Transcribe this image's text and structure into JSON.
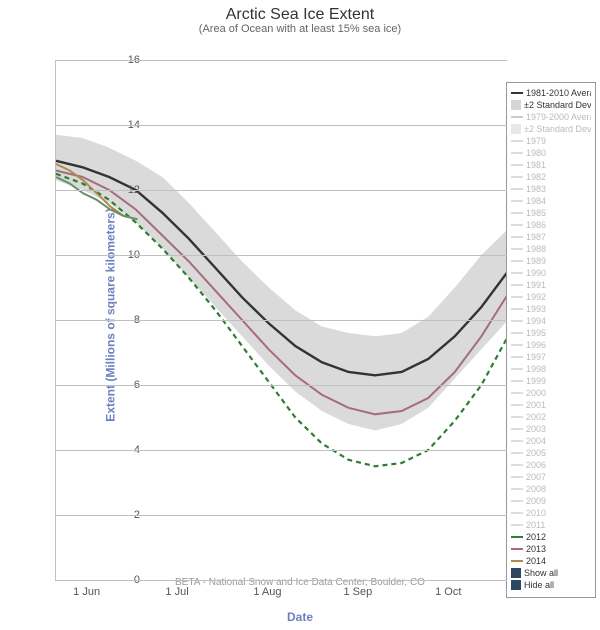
{
  "title": "Arctic Sea Ice Extent",
  "subtitle": "(Area of Ocean with at least 15% sea ice)",
  "y_axis": {
    "label": "Extent (Millions of square kilometers)",
    "min": 0,
    "max": 16,
    "ticks": [
      0,
      2,
      4,
      6,
      8,
      10,
      12,
      14,
      16
    ]
  },
  "x_axis": {
    "label": "Date",
    "ticks": [
      {
        "label": "1 Jun",
        "pos": 0.07
      },
      {
        "label": "1 Jul",
        "pos": 0.27
      },
      {
        "label": "1 Aug",
        "pos": 0.47
      },
      {
        "label": "1 Sep",
        "pos": 0.67
      },
      {
        "label": "1 Oct",
        "pos": 0.87
      }
    ]
  },
  "credits": "BETA - National Snow and Ice Data Center, Boulder, CO",
  "colors": {
    "grid": "#c0c0c0",
    "band": "#d6d6d6",
    "avg_line": "#333333",
    "y2012": "#2e7d32",
    "y2013": "#a86b7a",
    "y2014_1": "#b08b4f",
    "y2014_2": "#6b8f6b",
    "inactive_text": "#bbbbbb",
    "active_text": "#333333",
    "showhide_box": "#2d4762"
  },
  "series": {
    "band_upper": [
      13.7,
      13.6,
      13.3,
      12.9,
      12.4,
      11.6,
      10.7,
      9.8,
      9.0,
      8.3,
      7.8,
      7.6,
      7.5,
      7.6,
      8.1,
      9.0,
      10.0,
      10.8
    ],
    "band_lower": [
      12.3,
      12.0,
      11.6,
      11.0,
      10.2,
      9.3,
      8.4,
      7.5,
      6.6,
      5.8,
      5.2,
      4.8,
      4.6,
      4.8,
      5.3,
      6.2,
      7.1,
      8.0
    ],
    "avg": [
      12.9,
      12.7,
      12.4,
      12.0,
      11.3,
      10.5,
      9.6,
      8.7,
      7.9,
      7.2,
      6.7,
      6.4,
      6.3,
      6.4,
      6.8,
      7.5,
      8.4,
      9.5
    ],
    "y2012": [
      12.5,
      12.2,
      11.7,
      11.0,
      10.2,
      9.3,
      8.3,
      7.2,
      6.1,
      5.0,
      4.2,
      3.7,
      3.5,
      3.6,
      4.0,
      4.9,
      6.0,
      7.5
    ],
    "y2013": [
      12.6,
      12.4,
      12.0,
      11.4,
      10.6,
      9.8,
      8.9,
      8.0,
      7.1,
      6.3,
      5.7,
      5.3,
      5.1,
      5.2,
      5.6,
      6.4,
      7.5,
      8.8
    ],
    "y2014_seg1_x": [
      0.0,
      0.03,
      0.06,
      0.09,
      0.12,
      0.15,
      0.18
    ],
    "y2014_seg1_y": [
      12.8,
      12.6,
      12.3,
      11.9,
      11.5,
      11.2,
      11.1
    ],
    "y2014_seg2_x": [
      0.0,
      0.03,
      0.06,
      0.09,
      0.12,
      0.15,
      0.18
    ],
    "y2014_seg2_y": [
      12.4,
      12.2,
      11.9,
      11.7,
      11.4,
      11.2,
      11.1
    ]
  },
  "legend": {
    "top": [
      {
        "label": "1981-2010 Average",
        "type": "line",
        "color": "#333333",
        "active": true,
        "dashed": false
      },
      {
        "label": "±2 Standard Deviations",
        "type": "box",
        "color": "#d6d6d6",
        "active": true
      },
      {
        "label": "1979-2000 Average",
        "type": "line",
        "color": "#cccccc",
        "active": false,
        "dashed": false
      },
      {
        "label": "±2 Standard Deviations",
        "type": "box",
        "color": "#e8e8e8",
        "active": false
      }
    ],
    "years_inactive": [
      "1979",
      "1980",
      "1981",
      "1982",
      "1983",
      "1984",
      "1985",
      "1986",
      "1987",
      "1988",
      "1989",
      "1990",
      "1991",
      "1992",
      "1993",
      "1994",
      "1995",
      "1996",
      "1997",
      "1998",
      "1999",
      "2000",
      "2001",
      "2002",
      "2003",
      "2004",
      "2005",
      "2006",
      "2007",
      "2008",
      "2009",
      "2010",
      "2011"
    ],
    "years_active": [
      {
        "label": "2012",
        "color": "#2e7d32",
        "dashed": true
      },
      {
        "label": "2013",
        "color": "#a86b7a",
        "dashed": false
      },
      {
        "label": "2014",
        "color": "#b08b4f",
        "dashed": false
      }
    ],
    "show_all": "Show all",
    "hide_all": "Hide all"
  }
}
